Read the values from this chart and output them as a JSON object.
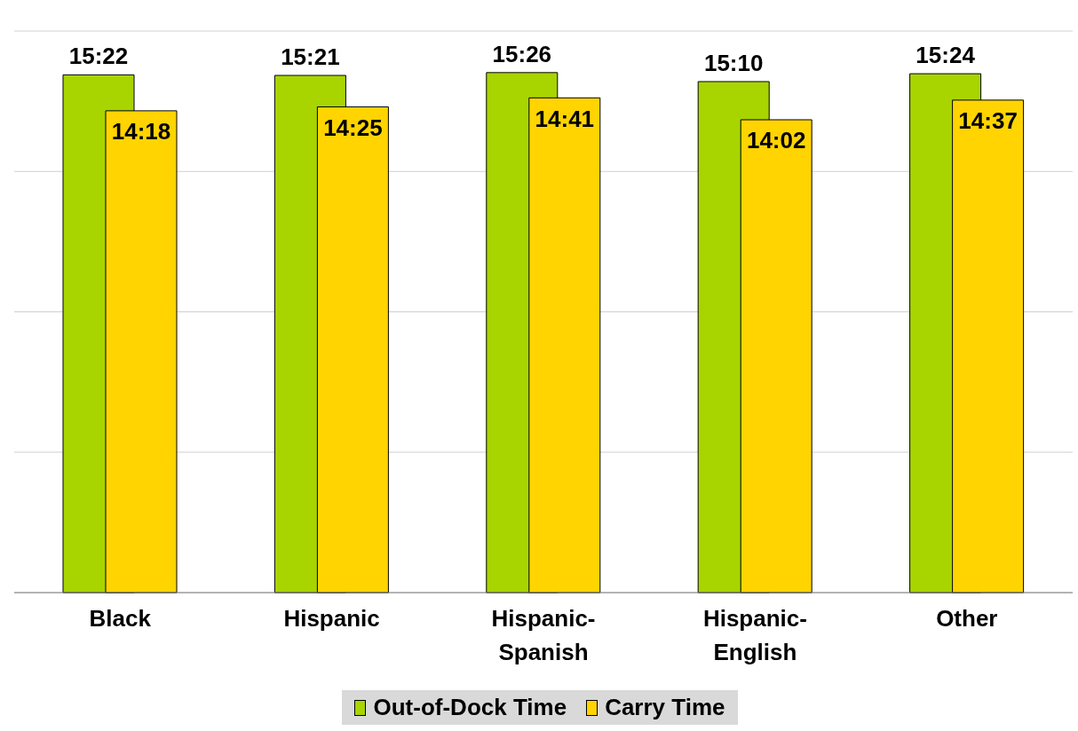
{
  "chart_data": {
    "type": "bar",
    "categories": [
      "Black",
      "Hispanic",
      "Hispanic-Spanish",
      "Hispanic-English",
      "Other"
    ],
    "series": [
      {
        "name": "Out-of-Dock Time",
        "color": "#a8d400",
        "values": [
          922,
          921,
          926,
          910,
          924
        ],
        "value_labels": [
          "15:22",
          "15:21",
          "15:26",
          "15:10",
          "15:24"
        ]
      },
      {
        "name": "Carry Time",
        "color": "#ffd400",
        "values": [
          858,
          865,
          881,
          842,
          877
        ],
        "value_labels": [
          "14:18",
          "14:25",
          "14:41",
          "14:02",
          "14:37"
        ]
      }
    ],
    "tick_labels": "x",
    "grid": "y",
    "legend": "bottom"
  }
}
